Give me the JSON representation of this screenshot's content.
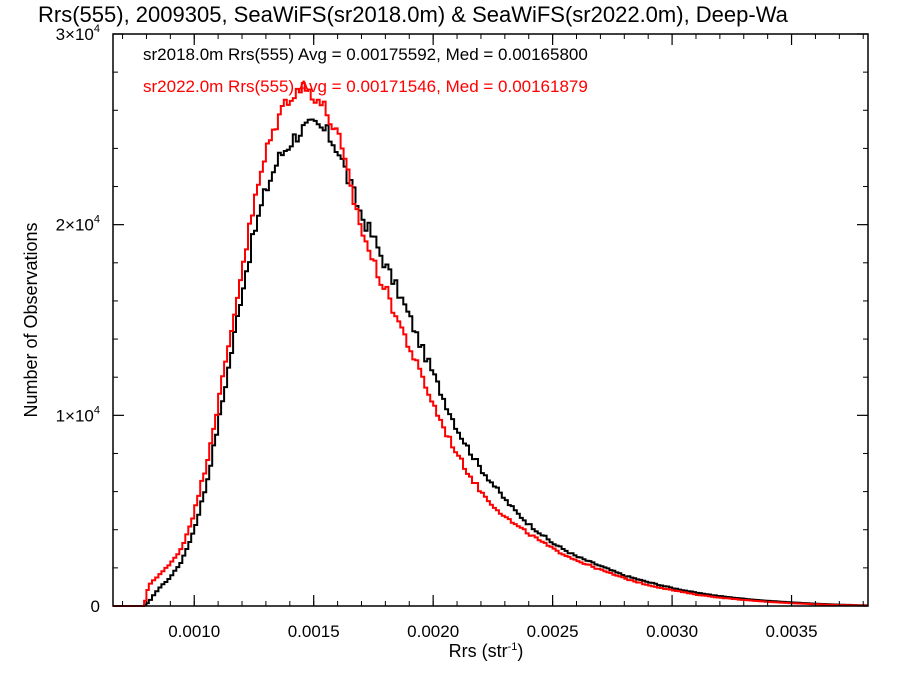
{
  "chart_data": {
    "type": "line",
    "title": "Rrs(555), 2009305, SeaWiFS(sr2018.0m) & SeaWiFS(sr2022.0m), Deep-Wa",
    "xlabel": "Rrs (str",
    "xlabel_sup": "-1",
    "xlabel_end": ")",
    "ylabel": "Number of Observations",
    "xlim": [
      0.00066,
      0.00382
    ],
    "ylim": [
      0,
      30000
    ],
    "x_ticks": [
      {
        "value": 0.001,
        "label": "0.0010"
      },
      {
        "value": 0.0015,
        "label": "0.0015"
      },
      {
        "value": 0.002,
        "label": "0.0020"
      },
      {
        "value": 0.0025,
        "label": "0.0025"
      },
      {
        "value": 0.003,
        "label": "0.0030"
      },
      {
        "value": 0.0035,
        "label": "0.0035"
      }
    ],
    "y_ticks": [
      {
        "value": 0,
        "label": "0",
        "sup": ""
      },
      {
        "value": 10000,
        "label": "1×10",
        "sup": "4"
      },
      {
        "value": 20000,
        "label": "2×10",
        "sup": "4"
      },
      {
        "value": 30000,
        "label": "3×10",
        "sup": "4"
      }
    ],
    "legend": [
      {
        "text": "sr2018.0m Rrs(555) Avg = 0.00175592, Med = 0.00165800",
        "color": "#000000"
      },
      {
        "text": "sr2022.0m Rrs(555) Avg = 0.00171546, Med = 0.00161879",
        "color": "#ff0000"
      }
    ],
    "legend_position": "top-left",
    "step": true,
    "series": [
      {
        "name": "sr2018.0m",
        "color": "#000000",
        "x": [
          0.00066,
          0.00079,
          0.00081,
          0.00085,
          0.0009,
          0.00095,
          0.001,
          0.00105,
          0.0011,
          0.00115,
          0.0012,
          0.00125,
          0.0013,
          0.00135,
          0.0014,
          0.00145,
          0.0015,
          0.00155,
          0.0016,
          0.00165,
          0.0017,
          0.00175,
          0.0018,
          0.00185,
          0.0019,
          0.00195,
          0.002,
          0.00205,
          0.0021,
          0.00215,
          0.0022,
          0.00225,
          0.0023,
          0.00235,
          0.0024,
          0.00245,
          0.0025,
          0.0026,
          0.0027,
          0.0028,
          0.0029,
          0.003,
          0.0031,
          0.0032,
          0.0033,
          0.0034,
          0.0035,
          0.0036,
          0.0037,
          0.00382
        ],
        "y": [
          0,
          0,
          200,
          900,
          1500,
          2400,
          4000,
          6300,
          9500,
          12900,
          16500,
          19500,
          21800,
          23400,
          24300,
          25000,
          25200,
          24900,
          24000,
          22200,
          20500,
          19300,
          17900,
          16600,
          15200,
          13600,
          12200,
          10700,
          9300,
          8200,
          7200,
          6400,
          5600,
          4900,
          4300,
          3800,
          3300,
          2600,
          2100,
          1600,
          1250,
          950,
          700,
          520,
          380,
          270,
          190,
          120,
          70,
          30
        ]
      },
      {
        "name": "sr2022.0m",
        "color": "#ff0000",
        "x": [
          0.00066,
          0.00079,
          0.00081,
          0.00085,
          0.0009,
          0.00095,
          0.001,
          0.00105,
          0.0011,
          0.00115,
          0.0012,
          0.00125,
          0.0013,
          0.00135,
          0.0014,
          0.00145,
          0.0015,
          0.00155,
          0.0016,
          0.00165,
          0.0017,
          0.00175,
          0.0018,
          0.00185,
          0.0019,
          0.00195,
          0.002,
          0.00205,
          0.0021,
          0.00215,
          0.0022,
          0.00225,
          0.0023,
          0.00235,
          0.0024,
          0.00245,
          0.0025,
          0.0026,
          0.0027,
          0.0028,
          0.0029,
          0.003,
          0.0031,
          0.0032,
          0.0033,
          0.0034,
          0.0035,
          0.0036,
          0.0037,
          0.00382
        ],
        "y": [
          0,
          0,
          1100,
          1600,
          2200,
          3100,
          4900,
          7400,
          10600,
          14000,
          17700,
          21000,
          23700,
          25600,
          26800,
          27200,
          26900,
          26000,
          24700,
          22200,
          19800,
          18000,
          16600,
          15100,
          13600,
          12100,
          10600,
          9200,
          8000,
          6900,
          6000,
          5300,
          4700,
          4200,
          3800,
          3400,
          3000,
          2400,
          1900,
          1450,
          1100,
          830,
          600,
          440,
          320,
          220,
          150,
          90,
          50,
          20
        ]
      }
    ]
  }
}
